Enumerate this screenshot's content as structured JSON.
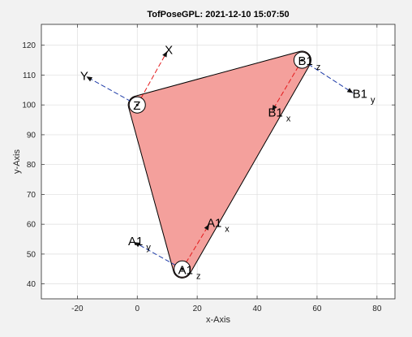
{
  "chart_data": {
    "type": "diagram-plot",
    "title": "TofPoseGPL: 2021-12-10 15:07:50",
    "xlabel": "x-Axis",
    "ylabel": "y-Axis",
    "xlim": [
      -32,
      86
    ],
    "ylim": [
      35,
      127
    ],
    "xticks": [
      "-20",
      "0",
      "20",
      "40",
      "60",
      "80"
    ],
    "xtick_values": [
      -20,
      0,
      20,
      40,
      60,
      80
    ],
    "yticks": [
      "40",
      "50",
      "60",
      "70",
      "80",
      "90",
      "100",
      "110",
      "120"
    ],
    "ytick_values": [
      40,
      50,
      60,
      70,
      80,
      90,
      100,
      110,
      120
    ],
    "grid": true,
    "colors": {
      "fill": "#f4a09c",
      "red_axis": "#e41a1c",
      "blue_axis": "#1f3ca8",
      "grid": "#dedede",
      "background": "#ffffff"
    },
    "polygon": {
      "vertices": [
        [
          0,
          100
        ],
        [
          55,
          115
        ],
        [
          15,
          45
        ]
      ],
      "corner_radius": 3
    },
    "frames": [
      {
        "name": "origin",
        "x": 0,
        "y": 100,
        "circle": true,
        "z_label": "Z",
        "x_axis": {
          "to": [
            10,
            118
          ],
          "label": "X",
          "sub": ""
        },
        "y_axis": {
          "to": [
            -17,
            109.5
          ],
          "label": "Y",
          "sub": ""
        }
      },
      {
        "name": "B1",
        "x": 55,
        "y": 115,
        "circle": true,
        "z_label": "B1",
        "z_sub": "z",
        "x_axis": {
          "to": [
            45,
            98
          ],
          "label": "B1",
          "sub": "x"
        },
        "y_axis": {
          "to": [
            72,
            104
          ],
          "label": "B1",
          "sub": "y"
        }
      },
      {
        "name": "A1",
        "x": 15,
        "y": 45,
        "circle": true,
        "z_label": "A1",
        "z_sub": "z",
        "x_axis": {
          "to": [
            24,
            60
          ],
          "label": "A1",
          "sub": "x"
        },
        "y_axis": {
          "to": [
            -1,
            54
          ],
          "label": "A1",
          "sub": "y"
        }
      }
    ]
  }
}
